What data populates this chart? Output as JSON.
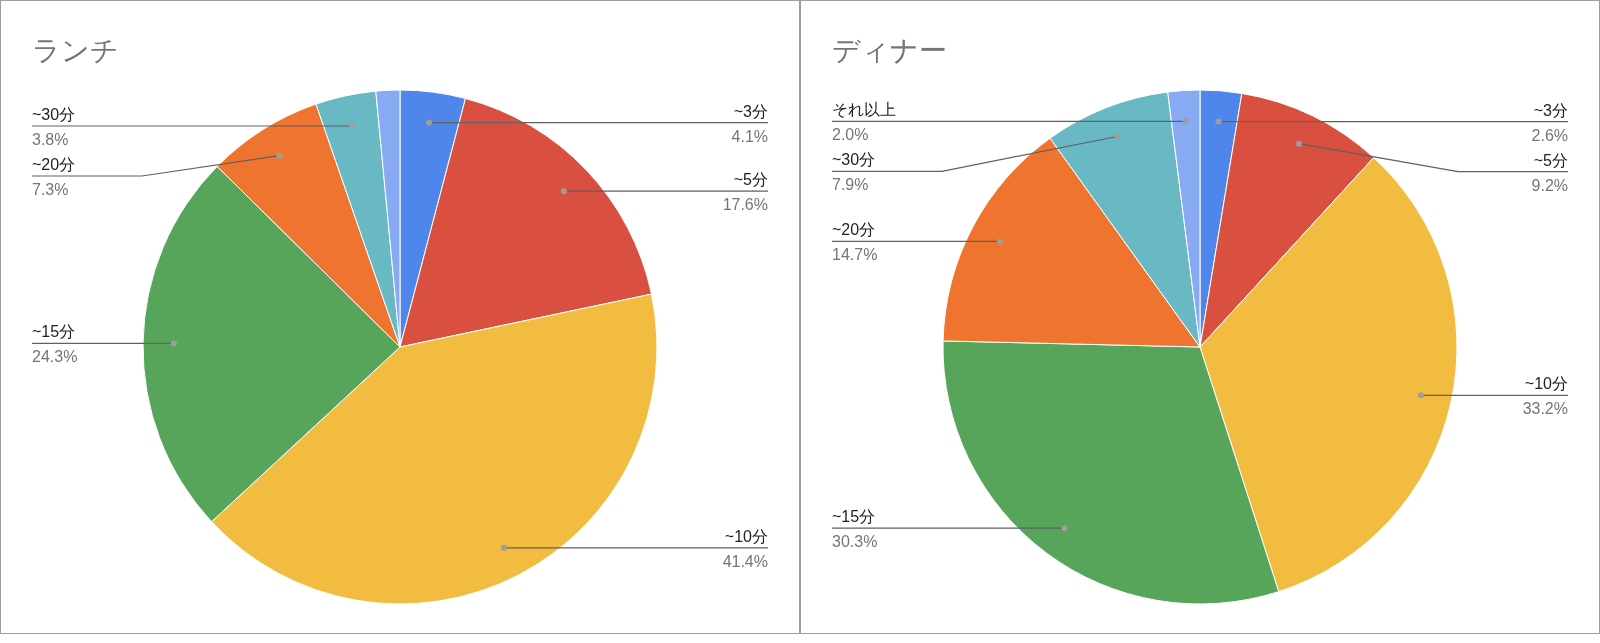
{
  "chart_data": [
    {
      "type": "pie",
      "title": "ランチ",
      "categories": [
        "~3分",
        "~5分",
        "~10分",
        "~15分",
        "~20分",
        "~30分",
        null
      ],
      "values": [
        4.1,
        17.6,
        41.4,
        24.3,
        7.3,
        3.8,
        1.5
      ],
      "colors": [
        "#4e86ec",
        "#d95040",
        "#f2bc41",
        "#57a55a",
        "#ee7430",
        "#69b9c4",
        "#87aaf2"
      ],
      "value_labels": [
        "4.1%",
        "17.6%",
        "41.4%",
        "24.3%",
        "7.3%",
        "3.8%",
        null
      ]
    },
    {
      "type": "pie",
      "title": "ディナー",
      "categories": [
        "~3分",
        "~5分",
        "~10分",
        "~15分",
        "~20分",
        "~30分",
        "それ以上"
      ],
      "values": [
        2.6,
        9.2,
        33.2,
        30.3,
        14.7,
        7.9,
        2.0
      ],
      "colors": [
        "#4e86ec",
        "#d95040",
        "#f2bc41",
        "#57a55a",
        "#ee7430",
        "#69b9c4",
        "#87aaf2"
      ],
      "value_labels": [
        "2.6%",
        "9.2%",
        "33.2%",
        "30.3%",
        "14.7%",
        "7.9%",
        "2.0%"
      ]
    }
  ]
}
